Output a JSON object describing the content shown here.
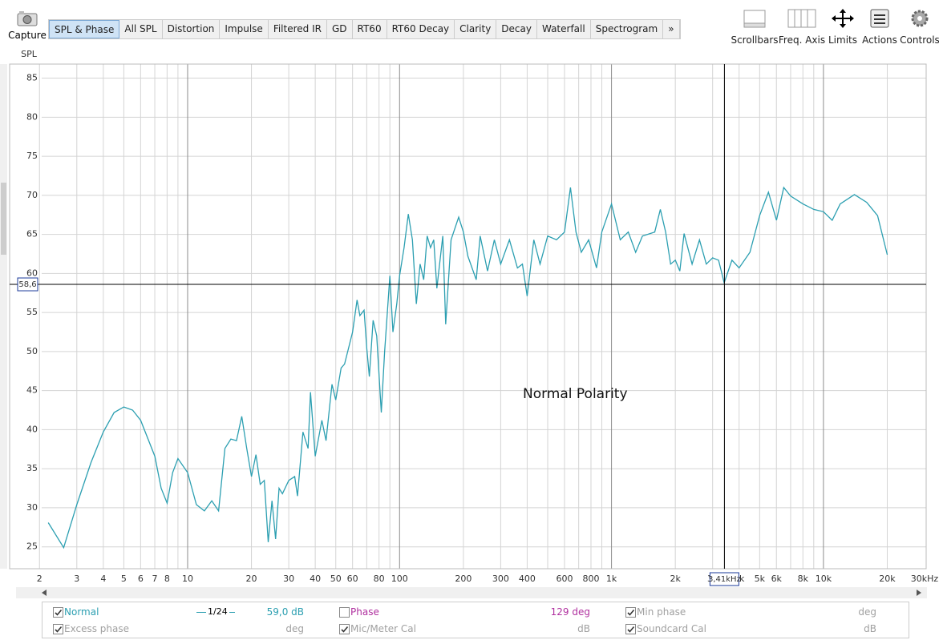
{
  "toolbar": {
    "capture": "Capture",
    "tabs": [
      {
        "label": "SPL & Phase",
        "selected": true
      },
      {
        "label": "All SPL",
        "selected": false
      },
      {
        "label": "Distortion",
        "selected": false
      },
      {
        "label": "Impulse",
        "selected": false
      },
      {
        "label": "Filtered IR",
        "selected": false
      },
      {
        "label": "GD",
        "selected": false
      },
      {
        "label": "RT60",
        "selected": false
      },
      {
        "label": "RT60 Decay",
        "selected": false
      },
      {
        "label": "Clarity",
        "selected": false
      },
      {
        "label": "Decay",
        "selected": false
      },
      {
        "label": "Waterfall",
        "selected": false
      },
      {
        "label": "Spectrogram",
        "selected": false
      },
      {
        "label": "»",
        "selected": false
      }
    ],
    "buttons": [
      "Scrollbars",
      "Freq. Axis",
      "Limits",
      "Actions",
      "Controls"
    ]
  },
  "chart_data": {
    "type": "line",
    "ylabel": "SPL",
    "annotation": "Normal Polarity",
    "log_x": true,
    "grid": true,
    "xlim": [
      1.55,
      30000
    ],
    "ylim": [
      22.2,
      86.8
    ],
    "yticks": [
      25,
      30,
      35,
      40,
      45,
      50,
      55,
      60,
      65,
      70,
      75,
      80,
      85
    ],
    "xticks": [
      2,
      3,
      4,
      5,
      6,
      7,
      8,
      10,
      20,
      30,
      40,
      50,
      60,
      80,
      100,
      200,
      300,
      400,
      600,
      800,
      {
        "value": 1000,
        "label": "1k"
      },
      {
        "value": 2000,
        "label": "2k"
      },
      {
        "value": 3000,
        "label": "3k"
      },
      {
        "value": 4000,
        "label": "4k"
      },
      {
        "value": 5000,
        "label": "5k"
      },
      {
        "value": 6000,
        "label": "6k"
      },
      {
        "value": 8000,
        "label": "8k"
      },
      {
        "value": 10000,
        "label": "10k"
      },
      {
        "value": 20000,
        "label": "20k"
      },
      {
        "value": 30000,
        "label": "30kHz"
      }
    ],
    "xgrid": [
      2,
      3,
      4,
      5,
      6,
      7,
      8,
      9,
      10,
      20,
      30,
      40,
      50,
      60,
      70,
      80,
      90,
      100,
      200,
      300,
      400,
      500,
      600,
      700,
      800,
      900,
      1000,
      2000,
      3000,
      4000,
      5000,
      6000,
      7000,
      8000,
      9000,
      10000,
      20000
    ],
    "cursor": {
      "x": {
        "value": 3410,
        "label": "3,41kHz"
      },
      "y": {
        "value": 58.6,
        "label": "58,6"
      }
    },
    "x": [
      2.2,
      2.6,
      3,
      3.5,
      4,
      4.5,
      5,
      5.5,
      6,
      7,
      7.5,
      8,
      8.5,
      9,
      10,
      11,
      12,
      13,
      14,
      15,
      16,
      17,
      18,
      19,
      20,
      21,
      22,
      23,
      24,
      25,
      26,
      27,
      28,
      30,
      32,
      33,
      35,
      37,
      38,
      40,
      43,
      45,
      48,
      50,
      53,
      55,
      58,
      60,
      63,
      65,
      68,
      70,
      72,
      75,
      78,
      82,
      85,
      90,
      93,
      97,
      100,
      105,
      110,
      115,
      120,
      125,
      130,
      135,
      140,
      145,
      150,
      160,
      165,
      175,
      190,
      200,
      210,
      230,
      240,
      260,
      280,
      300,
      330,
      360,
      380,
      400,
      430,
      460,
      500,
      550,
      600,
      640,
      680,
      720,
      780,
      850,
      900,
      1000,
      1100,
      1200,
      1300,
      1400,
      1600,
      1700,
      1800,
      1900,
      2000,
      2100,
      2200,
      2400,
      2600,
      2800,
      3000,
      3200,
      3400,
      3700,
      4000,
      4500,
      5000,
      5500,
      6000,
      6500,
      7000,
      8000,
      9000,
      10000,
      11000,
      12000,
      14000,
      16000,
      18000,
      20000
    ],
    "series": [
      {
        "name": "Normal",
        "color": "#2c9fb1",
        "values": [
          28.1,
          24.9,
          30.4,
          35.8,
          39.7,
          42.2,
          42.9,
          42.5,
          41.2,
          36.6,
          32.5,
          30.6,
          34.5,
          36.3,
          34.5,
          30.4,
          29.6,
          30.9,
          29.6,
          37.6,
          38.8,
          38.6,
          41.7,
          37.6,
          34.0,
          36.8,
          33.0,
          33.5,
          25.6,
          30.9,
          26.0,
          32.5,
          31.8,
          33.5,
          34.0,
          31.5,
          39.7,
          37.6,
          44.8,
          36.6,
          41.2,
          38.6,
          45.8,
          43.8,
          47.9,
          48.4,
          50.9,
          52.5,
          56.6,
          54.6,
          55.3,
          50.4,
          46.8,
          54.0,
          52.0,
          42.2,
          49.9,
          59.7,
          52.5,
          56.1,
          59.7,
          63.3,
          67.6,
          64.3,
          56.1,
          61.2,
          59.2,
          64.8,
          63.3,
          64.3,
          58.1,
          64.8,
          53.5,
          64.3,
          67.2,
          65.3,
          62.2,
          59.2,
          64.8,
          60.3,
          64.3,
          61.2,
          64.3,
          60.7,
          61.2,
          57.1,
          64.3,
          61.2,
          64.8,
          64.3,
          65.3,
          71.0,
          65.3,
          62.7,
          64.3,
          60.7,
          65.3,
          68.9,
          64.3,
          65.3,
          62.7,
          64.8,
          65.3,
          68.2,
          65.3,
          61.2,
          61.7,
          60.3,
          65.1,
          61.2,
          64.3,
          61.2,
          62.0,
          61.7,
          58.8,
          61.7,
          60.7,
          62.7,
          67.4,
          70.4,
          66.8,
          71.0,
          69.9,
          68.9,
          68.2,
          67.9,
          66.8,
          68.9,
          70.1,
          69.1,
          67.4,
          62.4
        ]
      }
    ]
  },
  "legend_panel": {
    "rows": [
      {
        "checked": true,
        "color": "#2c9fb1",
        "smoothing": "1/24",
        "value": "59,0 dB"
      },
      {
        "name": "Phase",
        "checked": false,
        "color": "#b0309f",
        "value": "129 deg"
      },
      {
        "name": "Min phase",
        "checked": true,
        "color": "#a0a0a0",
        "value": "deg"
      },
      {
        "name": "Excess phase",
        "checked": true,
        "color": "#a0a0a0",
        "value": "deg"
      },
      {
        "name": "Mic/Meter Cal",
        "checked": true,
        "color": "#a0a0a0",
        "value": "dB"
      },
      {
        "name": "Soundcard Cal",
        "checked": true,
        "color": "#a0a0a0",
        "value": "dB"
      }
    ]
  }
}
